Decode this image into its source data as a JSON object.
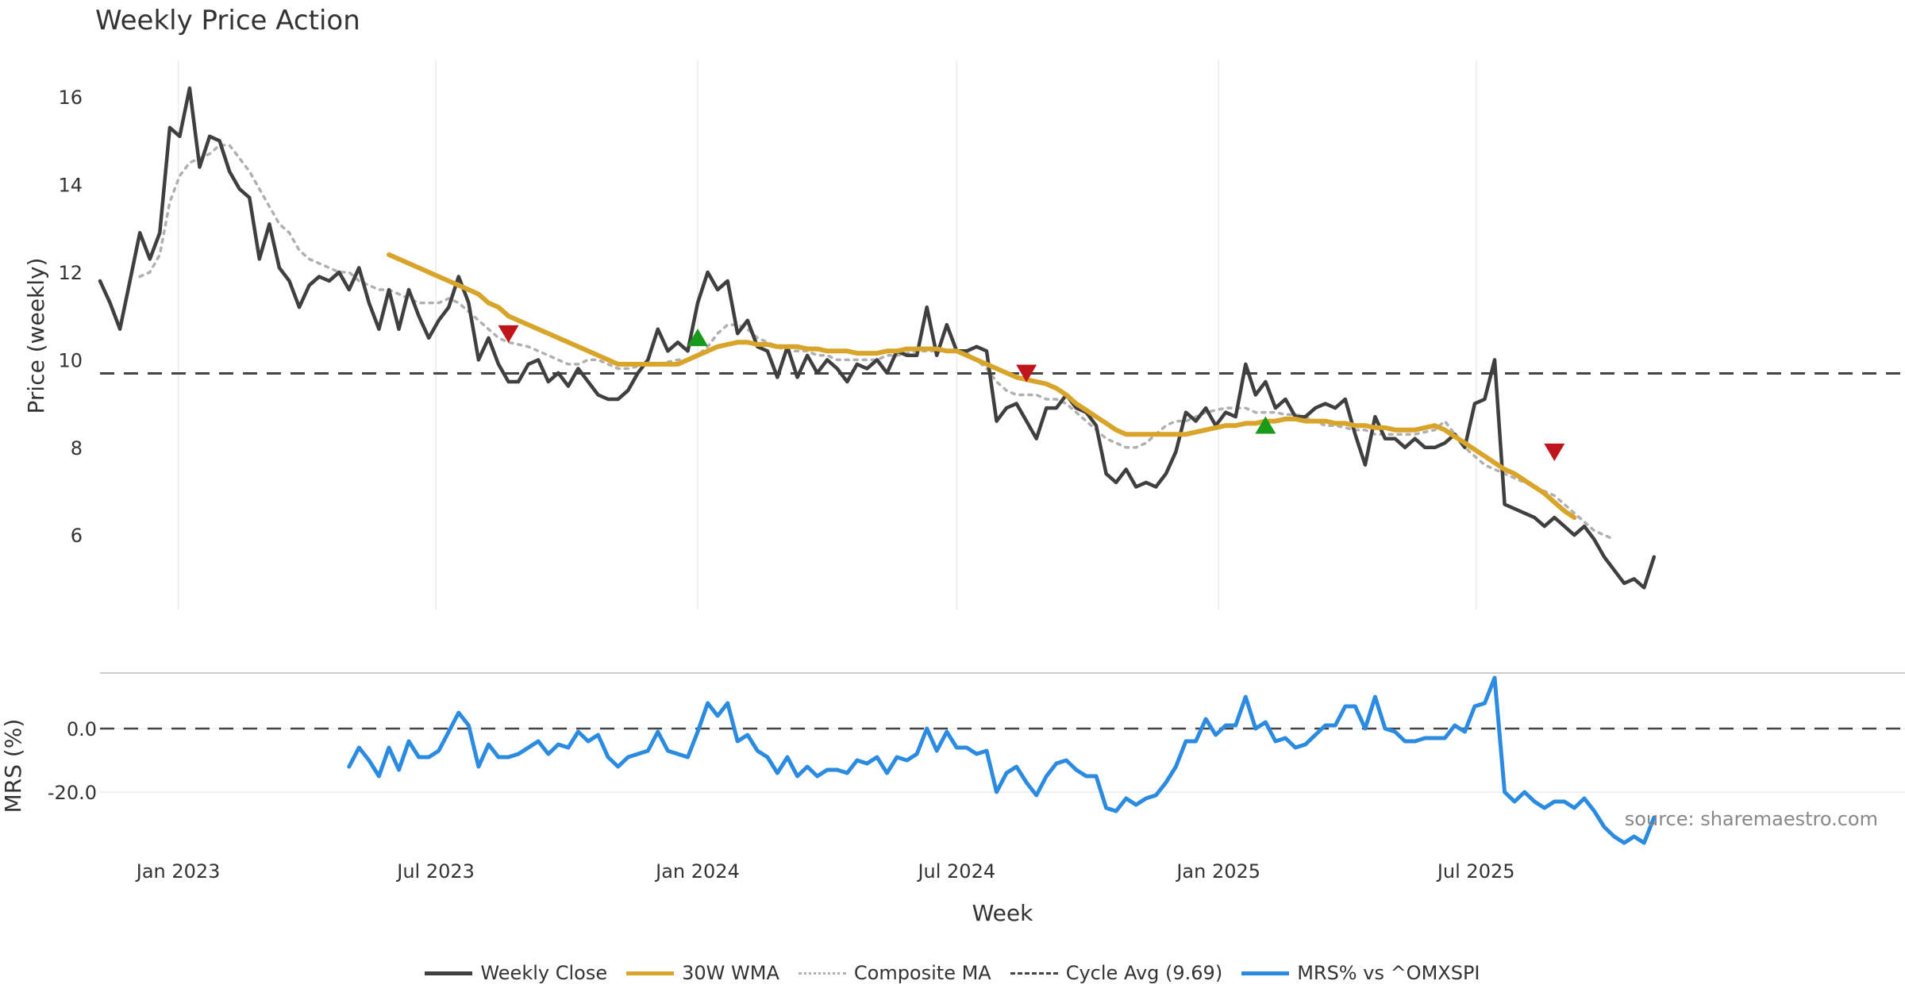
{
  "chart_data": {
    "type": "line",
    "title": "Weekly Price Action",
    "xlabel": "Week",
    "source_note": "source: sharemaestro.com",
    "x_ticks": [
      "Jan 2023",
      "Jul 2023",
      "Jan 2024",
      "Jul 2024",
      "Jan 2025",
      "Jul 2025"
    ],
    "x_start": "2022-11-07",
    "price_panel": {
      "ylabel": "Price (weekly)",
      "y_ticks": [
        6,
        8,
        10,
        12,
        14,
        16
      ],
      "ylim": [
        4.3,
        16.8
      ],
      "grid": "vertical",
      "series": [
        {
          "name": "Weekly Close",
          "color": "#3f3f3f",
          "style": "solid",
          "start_week": 0,
          "values": [
            11.8,
            11.3,
            10.7,
            11.8,
            12.9,
            12.3,
            12.9,
            15.3,
            15.1,
            16.2,
            14.4,
            15.1,
            15.0,
            14.3,
            13.9,
            13.7,
            12.3,
            13.1,
            12.1,
            11.8,
            11.2,
            11.7,
            11.9,
            11.8,
            12.0,
            11.6,
            12.1,
            11.3,
            10.7,
            11.6,
            10.7,
            11.6,
            11.0,
            10.5,
            10.9,
            11.2,
            11.9,
            11.3,
            10.0,
            10.5,
            9.9,
            9.5,
            9.5,
            9.9,
            10.0,
            9.5,
            9.7,
            9.4,
            9.8,
            9.5,
            9.2,
            9.1,
            9.1,
            9.3,
            9.7,
            10.0,
            10.7,
            10.2,
            10.4,
            10.2,
            11.3,
            12.0,
            11.6,
            11.8,
            10.6,
            10.9,
            10.3,
            10.2,
            9.6,
            10.3,
            9.6,
            10.1,
            9.7,
            10.0,
            9.8,
            9.5,
            9.9,
            9.8,
            10.0,
            9.7,
            10.2,
            10.1,
            10.1,
            11.2,
            10.1,
            10.8,
            10.2,
            10.2,
            10.3,
            10.2,
            8.6,
            8.9,
            9.0,
            8.6,
            8.2,
            8.9,
            8.9,
            9.2,
            8.9,
            8.8,
            8.5,
            7.4,
            7.2,
            7.5,
            7.1,
            7.2,
            7.1,
            7.4,
            7.9,
            8.8,
            8.6,
            8.9,
            8.5,
            8.8,
            8.7,
            9.9,
            9.2,
            9.5,
            8.9,
            9.1,
            8.7,
            8.7,
            8.9,
            9.0,
            8.9,
            9.1,
            8.3,
            7.6,
            8.7,
            8.2,
            8.2,
            8.0,
            8.2,
            8.0,
            8.0,
            8.1,
            8.3,
            8.0,
            9.0,
            9.1,
            10.0,
            6.7,
            6.6,
            6.5,
            6.4,
            6.2,
            6.4,
            6.2,
            6.0,
            6.2,
            5.9,
            5.5,
            5.2,
            4.9,
            5.0,
            4.8,
            5.5
          ]
        },
        {
          "name": "30W WMA",
          "color": "#d9a42a",
          "style": "solid",
          "start_week": 29,
          "values": [
            12.4,
            12.3,
            12.2,
            12.1,
            12.0,
            11.9,
            11.8,
            11.7,
            11.6,
            11.5,
            11.3,
            11.2,
            11.0,
            10.9,
            10.8,
            10.7,
            10.6,
            10.5,
            10.4,
            10.3,
            10.2,
            10.1,
            10.0,
            9.9,
            9.9,
            9.9,
            9.9,
            9.9,
            9.9,
            9.9,
            10.0,
            10.1,
            10.2,
            10.3,
            10.35,
            10.4,
            10.4,
            10.35,
            10.35,
            10.3,
            10.3,
            10.3,
            10.25,
            10.25,
            10.2,
            10.2,
            10.2,
            10.15,
            10.15,
            10.15,
            10.2,
            10.2,
            10.25,
            10.25,
            10.25,
            10.25,
            10.2,
            10.2,
            10.1,
            10.0,
            9.9,
            9.8,
            9.7,
            9.6,
            9.55,
            9.5,
            9.45,
            9.35,
            9.2,
            9.0,
            8.85,
            8.7,
            8.55,
            8.4,
            8.3,
            8.3,
            8.3,
            8.3,
            8.3,
            8.3,
            8.3,
            8.35,
            8.4,
            8.45,
            8.5,
            8.5,
            8.55,
            8.55,
            8.6,
            8.6,
            8.65,
            8.65,
            8.6,
            8.6,
            8.6,
            8.55,
            8.55,
            8.5,
            8.5,
            8.45,
            8.45,
            8.4,
            8.4,
            8.4,
            8.45,
            8.5,
            8.4,
            8.25,
            8.1,
            7.95,
            7.8,
            7.65,
            7.5,
            7.4,
            7.25,
            7.1,
            6.95,
            6.75,
            6.55,
            6.4
          ]
        },
        {
          "name": "Composite MA",
          "color": "#b0b0b0",
          "style": "dotted",
          "start_week": 4,
          "values": [
            11.9,
            12.0,
            12.4,
            13.6,
            14.2,
            14.5,
            14.6,
            14.7,
            14.9,
            14.9,
            14.6,
            14.3,
            13.9,
            13.5,
            13.1,
            12.9,
            12.5,
            12.3,
            12.2,
            12.1,
            12.0,
            12.0,
            11.8,
            11.7,
            11.6,
            11.6,
            11.5,
            11.4,
            11.3,
            11.3,
            11.3,
            11.4,
            11.3,
            11.1,
            10.9,
            10.7,
            10.5,
            10.4,
            10.35,
            10.3,
            10.2,
            10.1,
            10.0,
            9.9,
            9.9,
            10.0,
            10.0,
            9.9,
            9.8,
            9.8,
            9.85,
            9.9,
            9.9,
            9.95,
            10.0,
            10.0,
            10.1,
            10.3,
            10.6,
            10.8,
            10.8,
            10.7,
            10.5,
            10.4,
            10.3,
            10.2,
            10.2,
            10.2,
            10.1,
            10.1,
            10.0,
            10.0,
            10.0,
            10.0,
            10.0,
            10.1,
            10.1,
            10.15,
            10.2,
            10.2,
            10.2,
            10.2,
            10.2,
            10.15,
            10.0,
            9.8,
            9.5,
            9.3,
            9.2,
            9.2,
            9.2,
            9.1,
            9.1,
            9.0,
            8.8,
            8.6,
            8.4,
            8.2,
            8.1,
            8.0,
            8.0,
            8.1,
            8.3,
            8.5,
            8.6,
            8.6,
            8.7,
            8.8,
            8.85,
            8.9,
            8.9,
            8.9,
            8.8,
            8.8,
            8.8,
            8.75,
            8.75,
            8.7,
            8.6,
            8.5,
            8.5,
            8.45,
            8.4,
            8.4,
            8.3,
            8.3,
            8.3,
            8.3,
            8.3,
            8.35,
            8.4,
            8.6,
            8.3,
            8.0,
            7.8,
            7.6,
            7.5,
            7.4,
            7.3,
            7.2,
            7.1,
            7.0,
            6.9,
            6.7,
            6.5,
            6.3,
            6.1,
            6.0,
            5.9
          ]
        }
      ],
      "reference_line": {
        "name": "Cycle Avg (9.69)",
        "value": 9.69,
        "color": "#444444",
        "style": "dashed"
      },
      "markers": [
        {
          "kind": "sell",
          "week": 41,
          "price": 10.6,
          "color": "#c0141c"
        },
        {
          "kind": "buy",
          "week": 60,
          "price": 10.5,
          "color": "#1a9a1a"
        },
        {
          "kind": "sell",
          "week": 93,
          "price": 9.7,
          "color": "#c0141c"
        },
        {
          "kind": "buy",
          "week": 117,
          "price": 8.5,
          "color": "#1a9a1a"
        },
        {
          "kind": "sell",
          "week": 146,
          "price": 7.9,
          "color": "#c0141c"
        }
      ]
    },
    "mrs_panel": {
      "ylabel": "MRS (%)",
      "y_ticks": [
        "0.0",
        "-20.0"
      ],
      "ylim": [
        -38,
        17
      ],
      "series": [
        {
          "name": "MRS% vs ^OMXSPI",
          "color": "#2a8be0",
          "style": "solid",
          "start_week": 25,
          "values": [
            -12,
            -6,
            -10,
            -15,
            -6,
            -13,
            -4,
            -9,
            -9,
            -7,
            -1,
            5,
            1,
            -12,
            -5,
            -9,
            -9,
            -8,
            -6,
            -4,
            -8,
            -5,
            -6,
            -1,
            -4,
            -2,
            -9,
            -12,
            -9,
            -8,
            -7,
            -1,
            -7,
            -8,
            -9,
            -1,
            8,
            4,
            8,
            -4,
            -2,
            -7,
            -9,
            -14,
            -9,
            -15,
            -12,
            -15,
            -13,
            -13,
            -14,
            -10,
            -11,
            -9,
            -14,
            -9,
            -10,
            -8,
            0,
            -7,
            -1,
            -6,
            -6,
            -8,
            -7,
            -20,
            -14,
            -12,
            -17,
            -21,
            -15,
            -11,
            -10,
            -13,
            -15,
            -15,
            -25,
            -26,
            -22,
            -24,
            -22,
            -21,
            -17,
            -12,
            -4,
            -4,
            3,
            -2,
            1,
            1,
            10,
            0,
            2,
            -4,
            -3,
            -6,
            -5,
            -2,
            1,
            1,
            7,
            7,
            0,
            10,
            0,
            -1,
            -4,
            -4,
            -3,
            -3,
            -3,
            1,
            -1,
            7,
            8,
            16,
            -20,
            -23,
            -20,
            -23,
            -25,
            -23,
            -23,
            -25,
            -22,
            -26,
            -31,
            -34,
            -36,
            -34,
            -36,
            -28
          ]
        }
      ],
      "reference_line": {
        "value": 0,
        "color": "#444444",
        "style": "dashed"
      }
    },
    "legend": {
      "placement": "bottom-center",
      "entries": [
        {
          "label": "Weekly Close",
          "color": "#3f3f3f",
          "style": "solid"
        },
        {
          "label": "30W WMA",
          "color": "#d9a42a",
          "style": "solid"
        },
        {
          "label": "Composite MA",
          "color": "#b0b0b0",
          "style": "dotted"
        },
        {
          "label": "Cycle Avg (9.69)",
          "color": "#444444",
          "style": "dashed"
        },
        {
          "label": "MRS% vs ^OMXSPI",
          "color": "#2a8be0",
          "style": "solid"
        }
      ]
    }
  }
}
